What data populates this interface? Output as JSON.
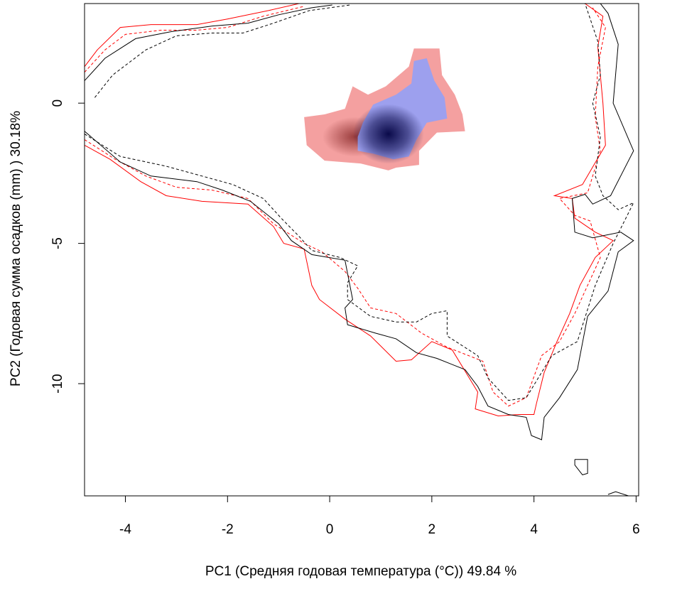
{
  "chart_data": {
    "type": "heatmap",
    "title": "",
    "xlabel": "PC1 (Средняя годовая температура (°С)) 49.84 %",
    "ylabel": "PC2 (Годовая сумма осадков  (mm) ) 30.18%",
    "xlim": [
      -4.8,
      6.05
    ],
    "ylim": [
      -14.0,
      3.55
    ],
    "xticks": [
      -4,
      -2,
      0,
      2,
      4,
      6
    ],
    "yticks": [
      0,
      -5,
      -10
    ],
    "xtick_labels": [
      "-4",
      "-2",
      "0",
      "2",
      "4",
      "6"
    ],
    "ytick_labels": [
      "0",
      "-5",
      "-10"
    ],
    "grid": false,
    "legend": "none",
    "density_a": {
      "color": "#f4a0a0",
      "peak_color": "#7a1a1a",
      "peak": [
        0.5,
        -1.2
      ],
      "region": [
        [
          -0.5,
          -0.5
        ],
        [
          -0.1,
          -0.4
        ],
        [
          0.3,
          -0.2
        ],
        [
          0.45,
          0.6
        ],
        [
          0.75,
          0.3
        ],
        [
          1.1,
          0.6
        ],
        [
          1.55,
          1.3
        ],
        [
          1.65,
          1.95
        ],
        [
          2.15,
          1.95
        ],
        [
          2.2,
          1.0
        ],
        [
          2.45,
          0.3
        ],
        [
          2.6,
          -0.4
        ],
        [
          2.65,
          -1.0
        ],
        [
          2.1,
          -1.05
        ],
        [
          1.75,
          -1.7
        ],
        [
          1.75,
          -2.2
        ],
        [
          1.3,
          -2.3
        ],
        [
          1.15,
          -2.4
        ],
        [
          0.6,
          -2.15
        ],
        [
          -0.1,
          -2.05
        ],
        [
          -0.45,
          -1.5
        ]
      ]
    },
    "density_b": {
      "color": "#9da0ee",
      "peak_color": "#0a0a4a",
      "peak": [
        1.15,
        -1.1
      ],
      "region": [
        [
          0.65,
          -0.7
        ],
        [
          0.85,
          -0.05
        ],
        [
          1.3,
          0.3
        ],
        [
          1.6,
          0.7
        ],
        [
          1.65,
          1.5
        ],
        [
          1.9,
          1.6
        ],
        [
          2.05,
          0.8
        ],
        [
          2.25,
          0.2
        ],
        [
          2.3,
          -0.55
        ],
        [
          1.9,
          -0.7
        ],
        [
          1.7,
          -1.3
        ],
        [
          1.55,
          -1.9
        ],
        [
          1.25,
          -2.0
        ],
        [
          0.85,
          -1.8
        ],
        [
          0.55,
          -1.7
        ],
        [
          0.55,
          -1.2
        ]
      ]
    },
    "series": [
      {
        "color": "#ff0000",
        "dash": false,
        "points": [
          [
            -4.8,
            1.3
          ],
          [
            -4.55,
            1.9
          ],
          [
            -4.1,
            2.7
          ],
          [
            -3.5,
            2.8
          ],
          [
            -2.6,
            2.8
          ],
          [
            -2.0,
            3.0
          ],
          [
            -1.2,
            3.3
          ],
          [
            -0.6,
            3.55
          ]
        ]
      },
      {
        "color": "#ff0000",
        "dash": false,
        "points": [
          [
            -4.8,
            -1.5
          ],
          [
            -4.3,
            -2.0
          ],
          [
            -3.7,
            -2.8
          ],
          [
            -3.2,
            -3.3
          ],
          [
            -2.5,
            -3.5
          ],
          [
            -1.6,
            -3.6
          ],
          [
            -1.1,
            -4.4
          ],
          [
            -0.9,
            -5.0
          ],
          [
            -0.5,
            -5.2
          ],
          [
            -0.35,
            -6.5
          ],
          [
            -0.2,
            -7.0
          ],
          [
            0.3,
            -7.7
          ],
          [
            0.8,
            -8.3
          ],
          [
            1.3,
            -9.2
          ],
          [
            1.6,
            -9.15
          ],
          [
            2.0,
            -8.5
          ],
          [
            2.4,
            -8.8
          ],
          [
            2.7,
            -9.7
          ],
          [
            2.9,
            -10.3
          ],
          [
            2.85,
            -10.9
          ],
          [
            3.3,
            -11.15
          ],
          [
            3.7,
            -11.1
          ],
          [
            4.0,
            -11.1
          ],
          [
            4.05,
            -10.7
          ],
          [
            4.2,
            -9.6
          ],
          [
            4.45,
            -8.5
          ],
          [
            4.7,
            -7.5
          ],
          [
            4.9,
            -6.5
          ],
          [
            5.2,
            -5.5
          ],
          [
            5.55,
            -4.9
          ],
          [
            5.2,
            -4.6
          ],
          [
            4.8,
            -4.1
          ],
          [
            4.75,
            -3.4
          ],
          [
            4.4,
            -3.3
          ],
          [
            4.95,
            -2.9
          ],
          [
            5.4,
            -1.5
          ],
          [
            5.35,
            0.0
          ],
          [
            5.25,
            2.0
          ],
          [
            5.35,
            3.1
          ],
          [
            5.0,
            3.55
          ]
        ]
      },
      {
        "color": "#ff0000",
        "dash": true,
        "points": [
          [
            -4.8,
            1.1
          ],
          [
            -4.4,
            1.9
          ],
          [
            -4.0,
            2.45
          ],
          [
            -3.3,
            2.6
          ],
          [
            -2.6,
            2.6
          ],
          [
            -2.0,
            2.7
          ],
          [
            -1.3,
            3.1
          ],
          [
            -0.5,
            3.45
          ]
        ]
      },
      {
        "color": "#ff0000",
        "dash": true,
        "points": [
          [
            -4.8,
            -1.3
          ],
          [
            -4.2,
            -2.0
          ],
          [
            -3.6,
            -2.6
          ],
          [
            -3.0,
            -3.0
          ],
          [
            -2.3,
            -3.1
          ],
          [
            -1.6,
            -3.4
          ],
          [
            -1.1,
            -4.3
          ],
          [
            -0.5,
            -5.0
          ],
          [
            -0.15,
            -5.3
          ],
          [
            0.3,
            -6.0
          ],
          [
            0.55,
            -6.6
          ],
          [
            0.8,
            -7.3
          ],
          [
            1.3,
            -7.5
          ],
          [
            1.8,
            -8.2
          ],
          [
            2.3,
            -8.7
          ],
          [
            3.0,
            -9.2
          ],
          [
            3.2,
            -10.3
          ],
          [
            3.5,
            -10.8
          ],
          [
            3.85,
            -10.5
          ],
          [
            4.15,
            -9.0
          ],
          [
            4.5,
            -8.5
          ],
          [
            4.8,
            -7.5
          ],
          [
            5.3,
            -5.5
          ],
          [
            5.1,
            -4.2
          ],
          [
            4.8,
            -4.0
          ],
          [
            4.5,
            -3.4
          ],
          [
            5.05,
            -3.2
          ],
          [
            5.3,
            -1.7
          ],
          [
            5.2,
            -0.5
          ],
          [
            5.25,
            1.3
          ],
          [
            5.4,
            2.7
          ],
          [
            5.15,
            3.4
          ]
        ]
      },
      {
        "color": "#000000",
        "dash": false,
        "points": [
          [
            -4.8,
            0.8
          ],
          [
            -4.4,
            1.6
          ],
          [
            -3.8,
            2.3
          ],
          [
            -3.1,
            2.55
          ],
          [
            -2.3,
            2.75
          ],
          [
            -1.6,
            2.85
          ],
          [
            -1.0,
            3.15
          ],
          [
            -0.35,
            3.4
          ],
          [
            0.05,
            3.5
          ]
        ]
      },
      {
        "color": "#000000",
        "dash": false,
        "points": [
          [
            -4.8,
            -1.0
          ],
          [
            -4.1,
            -2.1
          ],
          [
            -3.5,
            -2.6
          ],
          [
            -2.6,
            -2.8
          ],
          [
            -2.1,
            -3.1
          ],
          [
            -1.55,
            -3.5
          ],
          [
            -1.0,
            -4.3
          ],
          [
            -0.75,
            -4.9
          ],
          [
            -0.35,
            -5.4
          ],
          [
            0.3,
            -5.6
          ],
          [
            0.45,
            -7.0
          ],
          [
            0.3,
            -7.3
          ],
          [
            0.35,
            -7.9
          ],
          [
            0.9,
            -8.2
          ],
          [
            1.3,
            -8.4
          ],
          [
            1.7,
            -8.9
          ],
          [
            2.1,
            -9.1
          ],
          [
            2.65,
            -9.5
          ],
          [
            2.9,
            -10.1
          ],
          [
            3.1,
            -10.8
          ],
          [
            3.5,
            -11.1
          ],
          [
            3.85,
            -11.2
          ],
          [
            3.95,
            -11.85
          ],
          [
            4.15,
            -12.0
          ],
          [
            4.2,
            -11.2
          ],
          [
            4.5,
            -10.5
          ],
          [
            4.85,
            -9.5
          ],
          [
            5.05,
            -7.6
          ],
          [
            5.45,
            -6.7
          ],
          [
            5.65,
            -5.3
          ],
          [
            5.95,
            -4.9
          ],
          [
            5.7,
            -4.6
          ],
          [
            5.15,
            -4.8
          ],
          [
            4.8,
            -4.6
          ],
          [
            4.75,
            -3.4
          ],
          [
            5.0,
            -3.25
          ],
          [
            5.15,
            -3.6
          ],
          [
            5.5,
            -3.3
          ],
          [
            5.95,
            -1.7
          ],
          [
            5.55,
            0.0
          ],
          [
            5.65,
            2.1
          ],
          [
            5.45,
            3.2
          ],
          [
            5.3,
            3.55
          ]
        ]
      },
      {
        "color": "#000000",
        "dash": false,
        "points": [
          [
            5.45,
            -13.95
          ],
          [
            5.6,
            -13.85
          ],
          [
            5.85,
            -14.0
          ]
        ]
      },
      {
        "color": "#000000",
        "dash": false,
        "points": [
          [
            4.8,
            -12.7
          ],
          [
            5.05,
            -12.7
          ],
          [
            5.05,
            -13.2
          ],
          [
            4.95,
            -13.25
          ],
          [
            4.8,
            -12.9
          ],
          [
            4.8,
            -12.7
          ]
        ]
      },
      {
        "color": "#000000",
        "dash": true,
        "points": [
          [
            -4.6,
            0.2
          ],
          [
            -4.25,
            1.0
          ],
          [
            -3.6,
            1.9
          ],
          [
            -3.0,
            2.4
          ],
          [
            -2.3,
            2.5
          ],
          [
            -1.7,
            2.5
          ],
          [
            -1.1,
            2.85
          ],
          [
            -0.4,
            3.3
          ],
          [
            0.4,
            3.5
          ]
        ]
      },
      {
        "color": "#000000",
        "dash": true,
        "points": [
          [
            -4.8,
            -1.1
          ],
          [
            -4.1,
            -1.9
          ],
          [
            -3.2,
            -2.25
          ],
          [
            -2.5,
            -2.6
          ],
          [
            -1.9,
            -2.9
          ],
          [
            -1.3,
            -3.4
          ],
          [
            -0.95,
            -4.1
          ],
          [
            -0.6,
            -4.75
          ],
          [
            -0.35,
            -5.25
          ],
          [
            0.2,
            -5.5
          ],
          [
            0.55,
            -5.8
          ],
          [
            0.35,
            -6.4
          ],
          [
            0.35,
            -7.0
          ],
          [
            0.8,
            -7.6
          ],
          [
            1.3,
            -7.8
          ],
          [
            1.7,
            -7.8
          ],
          [
            2.0,
            -7.5
          ],
          [
            2.3,
            -7.4
          ],
          [
            2.3,
            -8.3
          ],
          [
            2.9,
            -9.0
          ],
          [
            3.1,
            -9.8
          ],
          [
            3.5,
            -10.6
          ],
          [
            3.85,
            -10.5
          ],
          [
            4.05,
            -9.9
          ],
          [
            4.35,
            -9.0
          ],
          [
            4.85,
            -8.5
          ],
          [
            5.2,
            -6.5
          ],
          [
            5.55,
            -5.0
          ],
          [
            5.8,
            -4.1
          ],
          [
            5.95,
            -3.55
          ],
          [
            5.65,
            -3.8
          ],
          [
            5.35,
            -3.3
          ],
          [
            5.2,
            -2.6
          ],
          [
            5.3,
            -1.2
          ],
          [
            5.15,
            0.0
          ],
          [
            5.3,
            1.0
          ],
          [
            5.25,
            2.2
          ],
          [
            5.0,
            3.55
          ]
        ]
      }
    ]
  }
}
